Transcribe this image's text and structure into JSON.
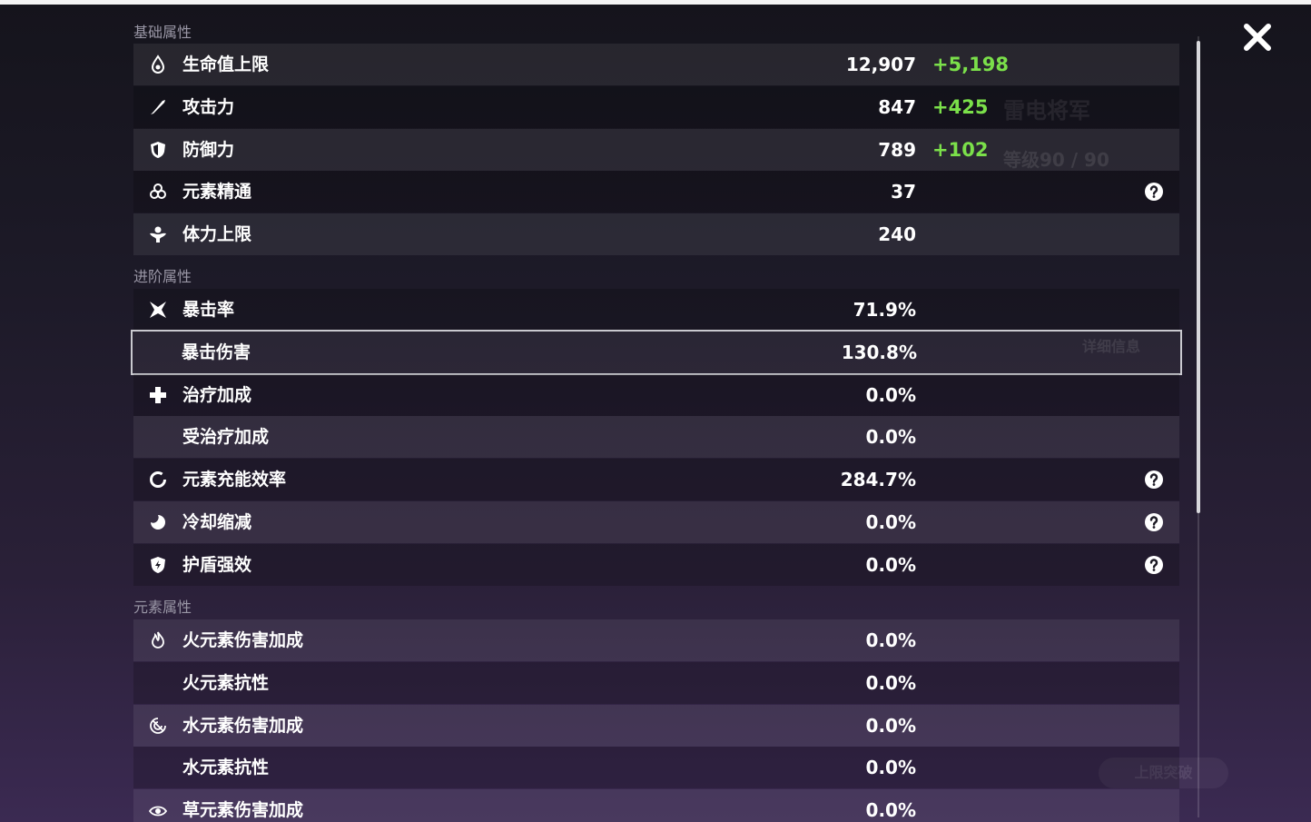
{
  "background": {
    "name": "雷电将军",
    "level": "等级90 / 90",
    "details": "详细信息",
    "ascend": "上限突破"
  },
  "sections": [
    {
      "title": "基础属性",
      "rows": [
        {
          "icon": "hp",
          "label": "生命值上限",
          "value": "12,907",
          "bonus": "+5,198"
        },
        {
          "icon": "atk",
          "label": "攻击力",
          "value": "847",
          "bonus": "+425"
        },
        {
          "icon": "def",
          "label": "防御力",
          "value": "789",
          "bonus": "+102"
        },
        {
          "icon": "em",
          "label": "元素精通",
          "value": "37",
          "help": true
        },
        {
          "icon": "stamina",
          "label": "体力上限",
          "value": "240"
        }
      ]
    },
    {
      "title": "进阶属性",
      "rows": [
        {
          "icon": "crit",
          "label": "暴击率",
          "value": "71.9%"
        },
        {
          "icon": "none",
          "label": "暴击伤害",
          "value": "130.8%",
          "selected": true
        },
        {
          "icon": "heal",
          "label": "治疗加成",
          "value": "0.0%"
        },
        {
          "icon": "none",
          "label": "受治疗加成",
          "value": "0.0%"
        },
        {
          "icon": "er",
          "label": "元素充能效率",
          "value": "284.7%",
          "help": true
        },
        {
          "icon": "cd",
          "label": "冷却缩减",
          "value": "0.0%",
          "help": true
        },
        {
          "icon": "shield",
          "label": "护盾强效",
          "value": "0.0%",
          "help": true
        }
      ]
    },
    {
      "title": "元素属性",
      "rows": [
        {
          "icon": "pyro",
          "label": "火元素伤害加成",
          "value": "0.0%"
        },
        {
          "icon": "none",
          "label": "火元素抗性",
          "value": "0.0%"
        },
        {
          "icon": "hydro",
          "label": "水元素伤害加成",
          "value": "0.0%"
        },
        {
          "icon": "none",
          "label": "水元素抗性",
          "value": "0.0%"
        },
        {
          "icon": "dendro",
          "label": "草元素伤害加成",
          "value": "0.0%"
        }
      ]
    }
  ]
}
